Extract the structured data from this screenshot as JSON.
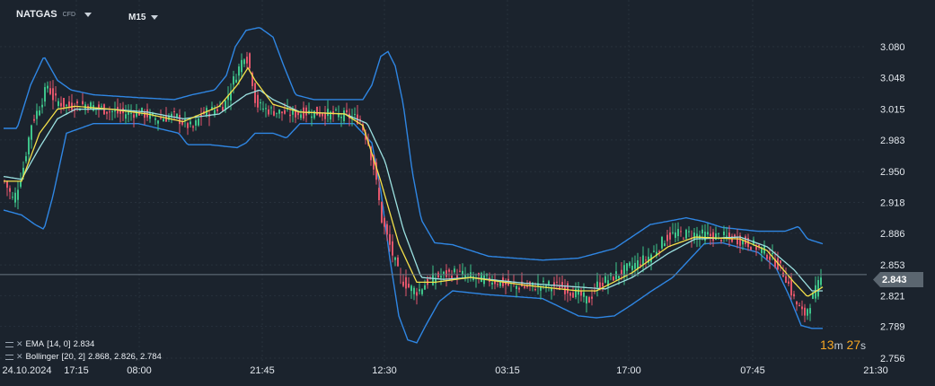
{
  "header": {
    "symbol": "NATGAS",
    "symbol_type": "CFD",
    "timeframe": "M15"
  },
  "price_tag": "2.843",
  "timer": {
    "minutes": "13",
    "m_unit": "m",
    "seconds": "27",
    "s_unit": "s"
  },
  "indicators": {
    "ema_label": "EMA",
    "ema_params": "[14, 0]",
    "ema_value": "2.834",
    "boll_label": "Bollinger",
    "boll_params": "[20, 2]",
    "boll_values": "2.868,  2.826,  2.784"
  },
  "colors": {
    "background": "#1b232d",
    "grid": "#27313c",
    "up_candle": "#3ec48a",
    "down_candle": "#e2566b",
    "bollinger": "#2f86e3",
    "ema": "#f4e04a",
    "bollinger_mid": "#9be0e0",
    "price_line": "#6a7682"
  },
  "chart_data": {
    "type": "candlestick",
    "y_ticks": [
      "3.080",
      "3.048",
      "3.015",
      "2.983",
      "2.950",
      "2.918",
      "2.886",
      "2.853",
      "2.821",
      "2.789",
      "2.756"
    ],
    "x_ticks": [
      "24.10.2024",
      "17:15",
      "08:00",
      "21:45",
      "12:30",
      "03:15",
      "17:00",
      "07:45",
      "21:30"
    ],
    "ylim": [
      2.756,
      3.08
    ],
    "current_price": 2.843,
    "close_path": [
      [
        0,
        2.94
      ],
      [
        10,
        2.92
      ],
      [
        20,
        2.95
      ],
      [
        30,
        3.0
      ],
      [
        40,
        3.02
      ],
      [
        48,
        3.04
      ],
      [
        55,
        3.025
      ],
      [
        70,
        3.018
      ],
      [
        90,
        3.02
      ],
      [
        110,
        3.015
      ],
      [
        130,
        3.01
      ],
      [
        150,
        3.012
      ],
      [
        170,
        3.005
      ],
      [
        190,
        3.008
      ],
      [
        200,
        3.0
      ],
      [
        210,
        2.995
      ],
      [
        220,
        3.01
      ],
      [
        235,
        3.015
      ],
      [
        245,
        3.02
      ],
      [
        255,
        3.045
      ],
      [
        262,
        3.06
      ],
      [
        268,
        3.075
      ],
      [
        275,
        3.05
      ],
      [
        280,
        3.02
      ],
      [
        290,
        3.015
      ],
      [
        305,
        3.012
      ],
      [
        320,
        3.01
      ],
      [
        340,
        3.012
      ],
      [
        360,
        3.01
      ],
      [
        380,
        3.008
      ],
      [
        395,
        3.005
      ],
      [
        405,
        2.98
      ],
      [
        412,
        2.95
      ],
      [
        420,
        2.9
      ],
      [
        430,
        2.87
      ],
      [
        440,
        2.84
      ],
      [
        450,
        2.83
      ],
      [
        460,
        2.825
      ],
      [
        470,
        2.835
      ],
      [
        480,
        2.84
      ],
      [
        500,
        2.845
      ],
      [
        520,
        2.84
      ],
      [
        540,
        2.838
      ],
      [
        560,
        2.832
      ],
      [
        580,
        2.83
      ],
      [
        600,
        2.832
      ],
      [
        620,
        2.83
      ],
      [
        640,
        2.822
      ],
      [
        650,
        2.815
      ],
      [
        660,
        2.832
      ],
      [
        680,
        2.842
      ],
      [
        695,
        2.85
      ],
      [
        705,
        2.855
      ],
      [
        715,
        2.86
      ],
      [
        725,
        2.868
      ],
      [
        735,
        2.88
      ],
      [
        745,
        2.885
      ],
      [
        760,
        2.885
      ],
      [
        780,
        2.884
      ],
      [
        800,
        2.882
      ],
      [
        815,
        2.88
      ],
      [
        830,
        2.875
      ],
      [
        845,
        2.868
      ],
      [
        860,
        2.855
      ],
      [
        870,
        2.84
      ],
      [
        880,
        2.815
      ],
      [
        890,
        2.8
      ],
      [
        900,
        2.82
      ],
      [
        910,
        2.84
      ]
    ],
    "ema_path": [
      [
        0,
        2.94
      ],
      [
        20,
        2.94
      ],
      [
        40,
        2.99
      ],
      [
        60,
        3.015
      ],
      [
        80,
        3.018
      ],
      [
        120,
        3.015
      ],
      [
        160,
        3.01
      ],
      [
        200,
        3.002
      ],
      [
        240,
        3.018
      ],
      [
        260,
        3.04
      ],
      [
        272,
        3.058
      ],
      [
        280,
        3.045
      ],
      [
        300,
        3.02
      ],
      [
        330,
        3.012
      ],
      [
        380,
        3.01
      ],
      [
        400,
        2.998
      ],
      [
        420,
        2.94
      ],
      [
        440,
        2.875
      ],
      [
        460,
        2.835
      ],
      [
        480,
        2.835
      ],
      [
        520,
        2.84
      ],
      [
        580,
        2.832
      ],
      [
        640,
        2.826
      ],
      [
        660,
        2.826
      ],
      [
        700,
        2.845
      ],
      [
        740,
        2.872
      ],
      [
        770,
        2.882
      ],
      [
        820,
        2.88
      ],
      [
        850,
        2.868
      ],
      [
        880,
        2.835
      ],
      [
        895,
        2.82
      ],
      [
        912,
        2.83
      ]
    ],
    "mid_path": [
      [
        0,
        2.945
      ],
      [
        20,
        2.942
      ],
      [
        40,
        2.975
      ],
      [
        60,
        3.005
      ],
      [
        80,
        3.015
      ],
      [
        120,
        3.015
      ],
      [
        160,
        3.012
      ],
      [
        200,
        3.005
      ],
      [
        240,
        3.01
      ],
      [
        270,
        3.03
      ],
      [
        285,
        3.035
      ],
      [
        300,
        3.025
      ],
      [
        330,
        3.012
      ],
      [
        380,
        3.01
      ],
      [
        405,
        3.0
      ],
      [
        425,
        2.96
      ],
      [
        445,
        2.89
      ],
      [
        465,
        2.84
      ],
      [
        490,
        2.838
      ],
      [
        520,
        2.84
      ],
      [
        580,
        2.834
      ],
      [
        640,
        2.83
      ],
      [
        670,
        2.828
      ],
      [
        700,
        2.84
      ],
      [
        740,
        2.865
      ],
      [
        770,
        2.88
      ],
      [
        820,
        2.882
      ],
      [
        850,
        2.872
      ],
      [
        880,
        2.848
      ],
      [
        900,
        2.826
      ],
      [
        912,
        2.826
      ]
    ],
    "upper_path": [
      [
        0,
        2.995
      ],
      [
        15,
        2.995
      ],
      [
        30,
        3.04
      ],
      [
        45,
        3.07
      ],
      [
        60,
        3.045
      ],
      [
        75,
        3.035
      ],
      [
        100,
        3.03
      ],
      [
        150,
        3.027
      ],
      [
        190,
        3.025
      ],
      [
        210,
        3.03
      ],
      [
        235,
        3.035
      ],
      [
        248,
        3.05
      ],
      [
        258,
        3.08
      ],
      [
        270,
        3.097
      ],
      [
        285,
        3.1
      ],
      [
        300,
        3.09
      ],
      [
        312,
        3.06
      ],
      [
        325,
        3.03
      ],
      [
        345,
        3.025
      ],
      [
        390,
        3.025
      ],
      [
        400,
        3.025
      ],
      [
        410,
        3.04
      ],
      [
        420,
        3.07
      ],
      [
        428,
        3.075
      ],
      [
        436,
        3.06
      ],
      [
        445,
        3.02
      ],
      [
        455,
        2.95
      ],
      [
        465,
        2.9
      ],
      [
        480,
        2.876
      ],
      [
        500,
        2.874
      ],
      [
        540,
        2.862
      ],
      [
        600,
        2.858
      ],
      [
        640,
        2.86
      ],
      [
        680,
        2.87
      ],
      [
        720,
        2.895
      ],
      [
        760,
        2.902
      ],
      [
        780,
        2.898
      ],
      [
        800,
        2.892
      ],
      [
        840,
        2.888
      ],
      [
        870,
        2.888
      ],
      [
        885,
        2.893
      ],
      [
        895,
        2.88
      ],
      [
        912,
        2.875
      ]
    ],
    "lower_path": [
      [
        0,
        2.91
      ],
      [
        20,
        2.905
      ],
      [
        35,
        2.895
      ],
      [
        45,
        2.89
      ],
      [
        55,
        2.925
      ],
      [
        70,
        2.99
      ],
      [
        100,
        3.0
      ],
      [
        150,
        3.0
      ],
      [
        195,
        2.99
      ],
      [
        205,
        2.978
      ],
      [
        230,
        2.978
      ],
      [
        260,
        2.975
      ],
      [
        270,
        2.98
      ],
      [
        280,
        2.99
      ],
      [
        300,
        2.99
      ],
      [
        315,
        2.985
      ],
      [
        330,
        3.0
      ],
      [
        390,
        3.0
      ],
      [
        410,
        2.98
      ],
      [
        420,
        2.93
      ],
      [
        430,
        2.86
      ],
      [
        440,
        2.8
      ],
      [
        450,
        2.775
      ],
      [
        460,
        2.772
      ],
      [
        470,
        2.79
      ],
      [
        485,
        2.815
      ],
      [
        500,
        2.826
      ],
      [
        540,
        2.822
      ],
      [
        600,
        2.818
      ],
      [
        640,
        2.8
      ],
      [
        660,
        2.798
      ],
      [
        680,
        2.8
      ],
      [
        700,
        2.812
      ],
      [
        720,
        2.825
      ],
      [
        745,
        2.84
      ],
      [
        760,
        2.855
      ],
      [
        780,
        2.875
      ],
      [
        800,
        2.876
      ],
      [
        840,
        2.866
      ],
      [
        860,
        2.85
      ],
      [
        875,
        2.82
      ],
      [
        888,
        2.79
      ],
      [
        900,
        2.787
      ],
      [
        912,
        2.787
      ]
    ]
  }
}
